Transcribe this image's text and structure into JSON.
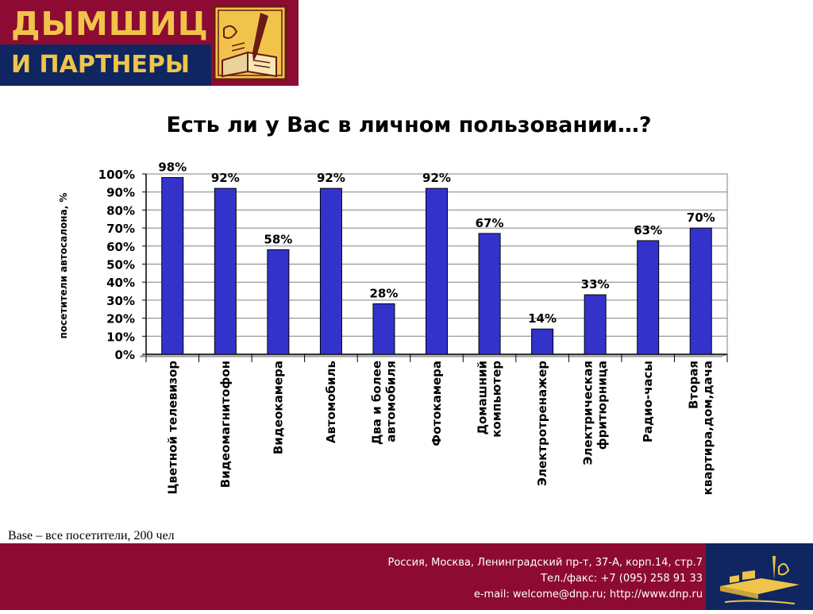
{
  "header": {
    "logo_line1": "ДЫМШИЦ",
    "logo_line2": "И ПАРТНЕРЫ",
    "logo_emblem_icon": "book-and-pen-icon"
  },
  "colors": {
    "brand_maroon": "#8d0b33",
    "brand_navy": "#0f2660",
    "brand_gold": "#f0c44a",
    "bar_fill": "#3333cc",
    "plot_background": "#ffffff"
  },
  "chart_data": {
    "type": "bar",
    "title": "Есть ли у Вас в личном пользовании…?",
    "ylabel": "посетители автосалона, %",
    "xlabel": "",
    "ylim": [
      0,
      100
    ],
    "yticks": [
      "0%",
      "10%",
      "20%",
      "30%",
      "40%",
      "50%",
      "60%",
      "70%",
      "80%",
      "90%",
      "100%"
    ],
    "grid": true,
    "categories": [
      [
        "Цветной телевизор"
      ],
      [
        "Видеомагнитофон"
      ],
      [
        "Видеокамера"
      ],
      [
        "Автомобиль"
      ],
      [
        "Два и более",
        "автомобиля"
      ],
      [
        "Фотокамера"
      ],
      [
        "Домашний",
        "компьютер"
      ],
      [
        "Электротренажер"
      ],
      [
        "Электрическая",
        "фритюрница"
      ],
      [
        "Радио-часы"
      ],
      [
        "Вторая",
        "квартира,дом,дача"
      ]
    ],
    "values": [
      98,
      92,
      58,
      92,
      28,
      92,
      67,
      14,
      33,
      63,
      70
    ],
    "data_labels": [
      "98%",
      "92%",
      "58%",
      "92%",
      "28%",
      "92%",
      "67%",
      "14%",
      "33%",
      "63%",
      "70%"
    ]
  },
  "footnote": {
    "base": "Base – все посетители, 200 чел"
  },
  "footer": {
    "address": "Россия, Москва, Ленинградский пр-т, 37-А, корп.14, стр.7",
    "phone": "Тел./факс: +7 (095) 258 91 33",
    "contacts": "e-mail: welcome@dnp.ru; http://www.dnp.ru",
    "logo_icon": "desk-with-books-icon"
  }
}
